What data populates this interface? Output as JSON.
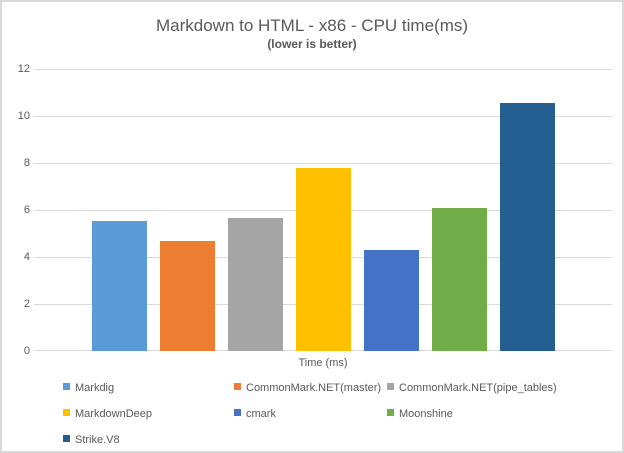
{
  "chart_data": {
    "type": "bar",
    "title": "Markdown to HTML - x86 - CPU time(ms)",
    "subtitle": "(lower is better)",
    "categories": [
      "Time (ms)"
    ],
    "series": [
      {
        "name": "Markdig",
        "value": 5.55,
        "color": "#5B9BD5"
      },
      {
        "name": "CommonMark.NET(master)",
        "value": 4.7,
        "color": "#ED7D31"
      },
      {
        "name": "CommonMark.NET(pipe_tables)",
        "value": 5.65,
        "color": "#A5A5A5"
      },
      {
        "name": "MarkdownDeep",
        "value": 7.8,
        "color": "#FFC000"
      },
      {
        "name": "cmark",
        "value": 4.28,
        "color": "#4472C4"
      },
      {
        "name": "Moonshine",
        "value": 6.1,
        "color": "#70AD47"
      },
      {
        "name": "Strike.V8",
        "value": 10.55,
        "color": "#255E91"
      }
    ],
    "ylim": [
      0,
      12
    ],
    "yticks": [
      0,
      2,
      4,
      6,
      8,
      10,
      12
    ],
    "grid": true,
    "legend_position": "bottom",
    "legend_columns": 3
  },
  "style": {
    "text_color": "#595959",
    "grid_color": "#D9D9D9",
    "border_color": "#D9D9D9",
    "background": "#FFFFFF"
  }
}
